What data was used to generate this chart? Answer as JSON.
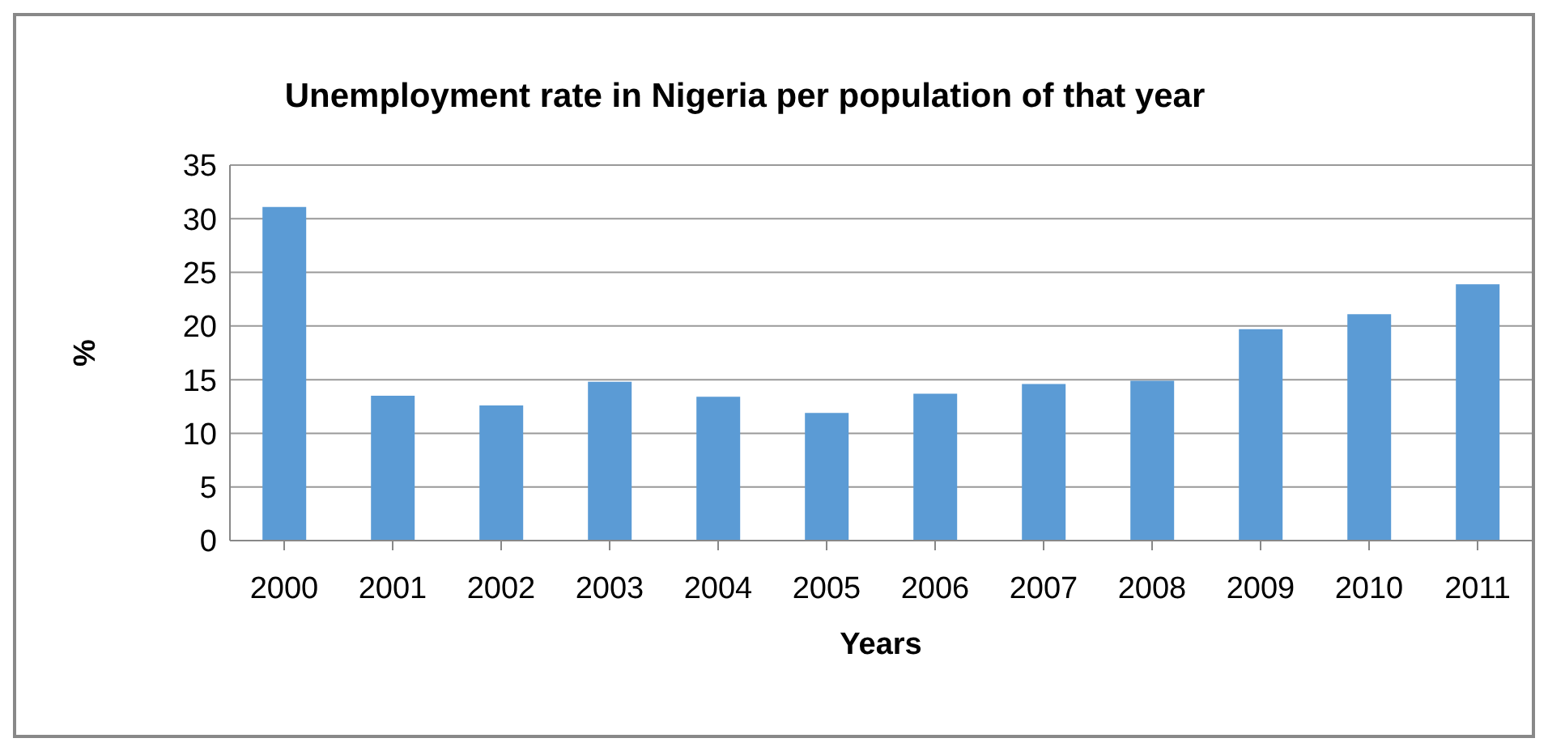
{
  "chart_data": {
    "type": "bar",
    "title": "Unemployment rate in Nigeria per population of that year",
    "xlabel": "Years",
    "ylabel": "%",
    "categories": [
      "2000",
      "2001",
      "2002",
      "2003",
      "2004",
      "2005",
      "2006",
      "2007",
      "2008",
      "2009",
      "2010",
      "2011"
    ],
    "values": [
      31.1,
      13.5,
      12.6,
      14.8,
      13.4,
      11.9,
      13.7,
      14.6,
      14.9,
      19.7,
      21.1,
      23.9
    ],
    "color": "#5b9bd5",
    "ylim": [
      0,
      35
    ],
    "yticks": [
      0,
      5,
      10,
      15,
      20,
      25,
      30,
      35
    ],
    "grid": "y",
    "legend": false
  }
}
